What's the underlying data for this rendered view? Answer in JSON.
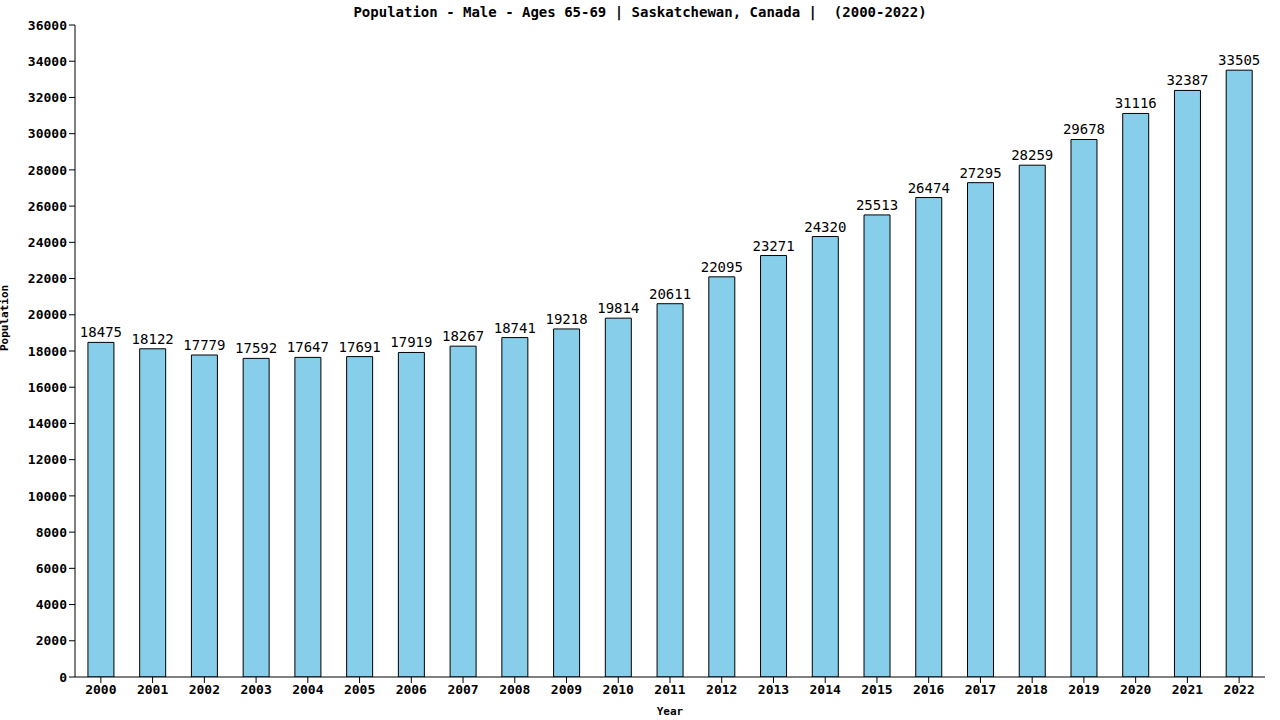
{
  "chart_data": {
    "type": "bar",
    "title": "Population - Male - Ages 65-69 | Saskatchewan, Canada |  (2000-2022)",
    "x_label": "Year",
    "y_label": "Population",
    "categories": [
      "2000",
      "2001",
      "2002",
      "2003",
      "2004",
      "2005",
      "2006",
      "2007",
      "2008",
      "2009",
      "2010",
      "2011",
      "2012",
      "2013",
      "2014",
      "2015",
      "2016",
      "2017",
      "2018",
      "2019",
      "2020",
      "2021",
      "2022"
    ],
    "values": [
      18475,
      18122,
      17779,
      17592,
      17647,
      17691,
      17919,
      18267,
      18741,
      19218,
      19814,
      20611,
      22095,
      23271,
      24320,
      25513,
      26474,
      27295,
      28259,
      29678,
      31116,
      32387,
      33505
    ],
    "color": "#87ceeb",
    "ylim": [
      0,
      36000
    ],
    "yticks": [
      0,
      2000,
      4000,
      6000,
      8000,
      10000,
      12000,
      14000,
      16000,
      18000,
      20000,
      22000,
      24000,
      26000,
      28000,
      30000,
      32000,
      34000,
      36000
    ],
    "grid": false,
    "data_labels": true
  }
}
